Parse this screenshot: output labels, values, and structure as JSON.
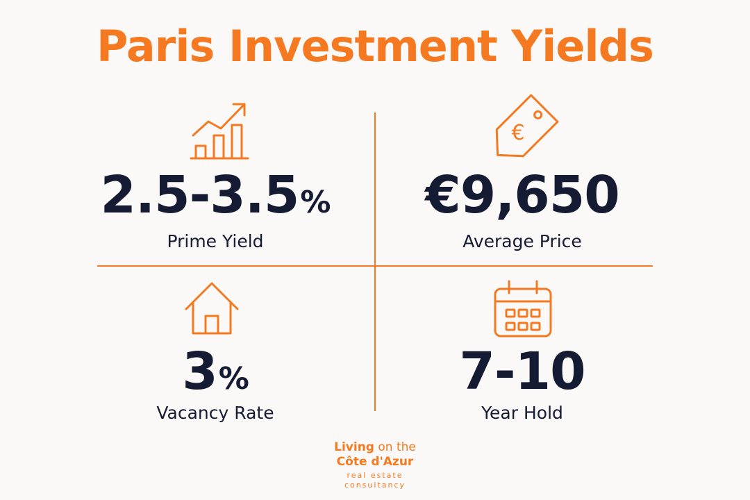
{
  "header": {
    "title": "Paris Investment Yields"
  },
  "stats": [
    {
      "value": "2.5-3.5",
      "unit": "%",
      "label": "Prime Yield"
    },
    {
      "value": "€9,650",
      "label": "Average Price"
    },
    {
      "value": "3",
      "unit": "%",
      "label": "Vacancy Rate"
    },
    {
      "value": "7-10",
      "label": "Year Hold"
    }
  ],
  "price_icon_symbol": "€",
  "logo": {
    "line1_bold": "Living",
    "line1_rest": "on the",
    "line2": "Côte d'Azur",
    "tagline1": "real estate",
    "tagline2": "consultancy"
  }
}
